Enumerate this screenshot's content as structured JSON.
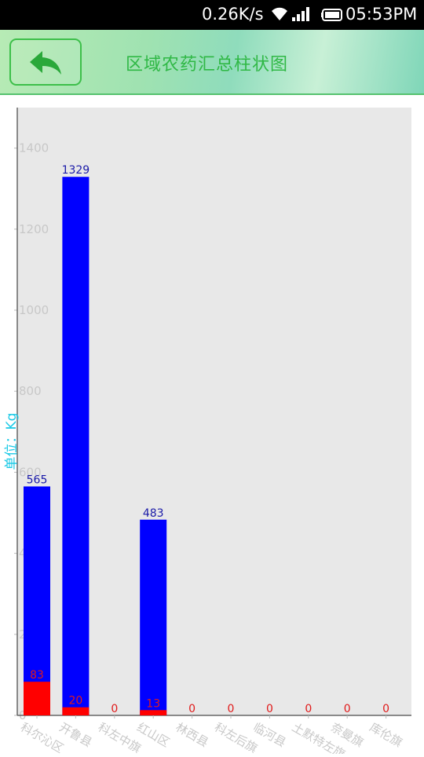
{
  "status_bar": {
    "network_speed": "0.26K/s",
    "time": "05:53PM",
    "icons": [
      "wifi-icon",
      "signal-icon",
      "battery-icon"
    ]
  },
  "header": {
    "title": "区域农药汇总柱状图",
    "back_icon": "back-arrow-icon"
  },
  "colors": {
    "accent": "#2fb845",
    "series_total": "#0000ff",
    "series_sub": "#ff0000",
    "ylabel": "#19c9e6",
    "plot_bg": "#e8e8e8"
  },
  "chart_data": {
    "type": "bar",
    "ylabel": "单位：Kg",
    "ylim": [
      0,
      1500
    ],
    "yticks": [
      0,
      200,
      400,
      600,
      800,
      1000,
      1200,
      1400
    ],
    "categories": [
      "科尔沁区",
      "开鲁县",
      "科左中旗",
      "红山区",
      "林西县",
      "科左后旗",
      "临河县",
      "土默特左旗",
      "奈曼旗",
      "库伦旗"
    ],
    "series": [
      {
        "values": [
          565,
          1329,
          0,
          483,
          0,
          0,
          0,
          0,
          0,
          0
        ],
        "color": "#0000ff",
        "show_labels": [
          true,
          true,
          false,
          true,
          false,
          false,
          false,
          false,
          false,
          false
        ]
      },
      {
        "values": [
          83,
          20,
          0,
          13,
          0,
          0,
          0,
          0,
          0,
          0
        ],
        "color": "#ff0000",
        "show_labels": [
          true,
          true,
          true,
          true,
          true,
          true,
          true,
          true,
          true,
          true
        ]
      }
    ],
    "grid": false
  }
}
